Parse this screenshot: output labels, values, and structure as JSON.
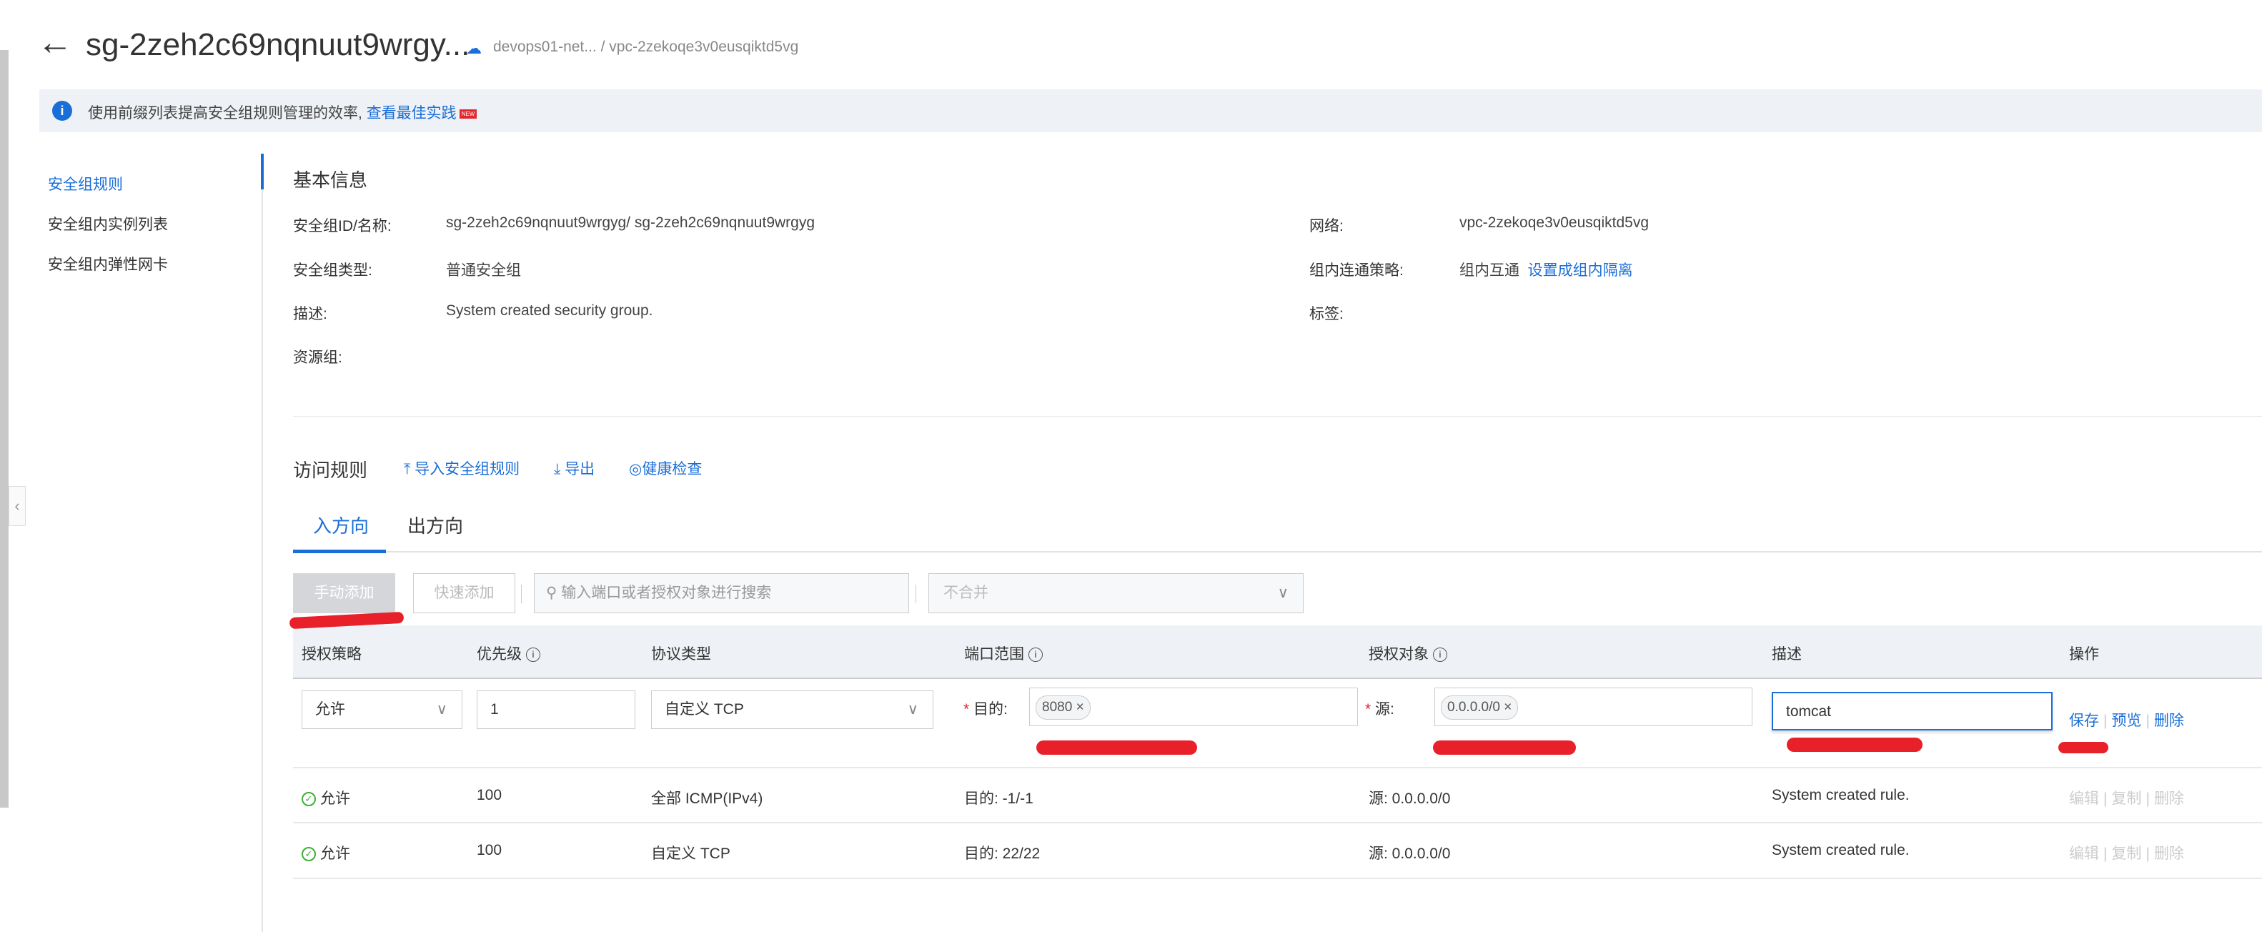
{
  "header": {
    "back_icon": "arrow-left-icon",
    "title": "sg-2zeh2c69nqnuut9wrgy...",
    "cloud_icon": "cloud-icon",
    "breadcrumb": "devops01-net... / vpc-2zekoqe3v0eusqiktd5vg"
  },
  "notice": {
    "icon": "info-icon",
    "text": "使用前缀列表提高安全组规则管理的效率,",
    "link": "查看最佳实践",
    "badge": "NEW"
  },
  "sidebar": {
    "items": [
      {
        "label": "安全组规则",
        "active": true
      },
      {
        "label": "安全组内实例列表"
      },
      {
        "label": "安全组内弹性网卡"
      }
    ]
  },
  "basic": {
    "heading": "基本信息",
    "left": [
      {
        "label": "安全组ID/名称:",
        "value": "sg-2zeh2c69nqnuut9wrgyg/ sg-2zeh2c69nqnuut9wrgyg"
      },
      {
        "label": "安全组类型:",
        "value": "普通安全组"
      },
      {
        "label": "描述:",
        "value": "System created security group."
      },
      {
        "label": "资源组:",
        "value": ""
      }
    ],
    "right": [
      {
        "label": "网络:",
        "value": "vpc-2zekoqe3v0eusqiktd5vg"
      },
      {
        "label": "组内连通策略:",
        "value": "组内互通",
        "link": "设置成组内隔离"
      },
      {
        "label": "标签:",
        "value": ""
      }
    ]
  },
  "rules": {
    "heading": "访问规则",
    "actions": [
      {
        "icon": "upload-icon",
        "label": "导入安全组规则"
      },
      {
        "icon": "download-icon",
        "label": "导出"
      },
      {
        "icon": "shield-check-icon",
        "label": "健康检查"
      }
    ],
    "tabs": [
      {
        "label": "入方向",
        "active": true
      },
      {
        "label": "出方向"
      }
    ],
    "toolbar": {
      "manual_add": "手动添加",
      "quick_add": "快速添加",
      "search_placeholder": "输入端口或者授权对象进行搜索",
      "merge_select": "不合并"
    },
    "columns": [
      "授权策略",
      "优先级",
      "协议类型",
      "端口范围",
      "授权对象",
      "描述",
      "操作"
    ],
    "edit_row": {
      "policy": "允许",
      "priority": "1",
      "protocol": "自定义 TCP",
      "port_prefix": "目的:",
      "port_tag": "8080",
      "source_prefix": "源:",
      "source_tag": "0.0.0.0/0",
      "description": "tomcat",
      "ops": [
        "保存",
        "预览",
        "删除"
      ]
    },
    "rows": [
      {
        "policy": "允许",
        "priority": "100",
        "protocol": "全部 ICMP(IPv4)",
        "port": "目的: -1/-1",
        "source": "源: 0.0.0.0/0",
        "description": "System created rule.",
        "ops": [
          "编辑",
          "复制",
          "删除"
        ]
      },
      {
        "policy": "允许",
        "priority": "100",
        "protocol": "自定义 TCP",
        "port": "目的: 22/22",
        "source": "源: 0.0.0.0/0",
        "description": "System created rule.",
        "ops": [
          "编辑",
          "复制",
          "删除"
        ]
      }
    ]
  },
  "colors": {
    "accent": "#1a6ed8",
    "annotation": "#e8202a",
    "success": "#3cb034"
  }
}
